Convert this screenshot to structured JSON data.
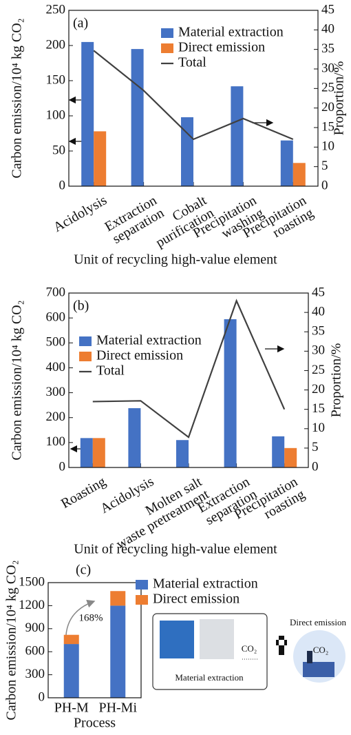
{
  "chart_data": [
    {
      "type": "bar",
      "title": "(a)",
      "y_label": "Carbon emission/10⁴ kg CO₂",
      "y2_label": "Proportion/%",
      "x_label": "Unit of recycling high-value element",
      "categories": [
        "Acidolysis",
        "Extraction\nseparation",
        "Cobalt\npurification",
        "Precipitation\nwashing",
        "Precipitation\nroasting"
      ],
      "series": [
        {
          "name": "Material extraction",
          "color": "#4472c4",
          "values": [
            205,
            195,
            98,
            142,
            65
          ]
        },
        {
          "name": "Direct emission",
          "color": "#ed7d31",
          "values": [
            78,
            null,
            null,
            null,
            33
          ]
        },
        {
          "name": "Total",
          "color": "#404040",
          "type": "line",
          "axis": "y2",
          "values": [
            34.7,
            24.5,
            12,
            17.3,
            12
          ]
        }
      ],
      "ylim": [
        0,
        250
      ],
      "yticks": [
        0,
        50,
        100,
        150,
        200,
        250
      ],
      "y2lim": [
        0,
        45
      ],
      "y2ticks": [
        0,
        5,
        10,
        15,
        20,
        25,
        30,
        35,
        40,
        45
      ],
      "legend": "upper right"
    },
    {
      "type": "bar",
      "title": "(b)",
      "y_label": "Carbon emission/10⁴ kg CO₂",
      "y2_label": "Proportion/%",
      "x_label": "Unit of recycling high-value element",
      "categories": [
        "Roasting",
        "Acidolysis",
        "Molten salt\nwaste pretreatment",
        "Extraction\nseparation",
        "Precipitation\nroasting"
      ],
      "series": [
        {
          "name": "Material extraction",
          "color": "#4472c4",
          "values": [
            118,
            238,
            110,
            595,
            125
          ]
        },
        {
          "name": "Direct emission",
          "color": "#ed7d31",
          "values": [
            118,
            null,
            null,
            null,
            78
          ]
        },
        {
          "name": "Total",
          "color": "#404040",
          "type": "line",
          "axis": "y2",
          "values": [
            17,
            17.2,
            7.8,
            43,
            15
          ]
        }
      ],
      "ylim": [
        0,
        700
      ],
      "yticks": [
        0,
        100,
        200,
        300,
        400,
        500,
        600,
        700
      ],
      "y2lim": [
        0,
        45
      ],
      "y2ticks": [
        0,
        5,
        10,
        15,
        20,
        25,
        30,
        35,
        40,
        45
      ],
      "legend": "upper left"
    },
    {
      "type": "stacked_bar",
      "title": "(c)",
      "y_label": "Carbon emission/10⁴ kg CO₂",
      "x_label": "Process",
      "categories": [
        "PH-M",
        "PH-Mi"
      ],
      "series": [
        {
          "name": "Material extraction",
          "color": "#4472c4",
          "values": [
            700,
            1200
          ]
        },
        {
          "name": "Direct emission",
          "color": "#ed7d31",
          "values": [
            120,
            190
          ]
        }
      ],
      "ylim": [
        0,
        1500
      ],
      "yticks": [
        0,
        300,
        600,
        900,
        1200,
        1500
      ],
      "legend": "right",
      "annotation": "168%"
    }
  ],
  "illustration": {
    "material_label": "Material extraction",
    "co2_label": "CO₂",
    "direct_label": "Direct emission",
    "icon_co2_label": "CO₂"
  }
}
